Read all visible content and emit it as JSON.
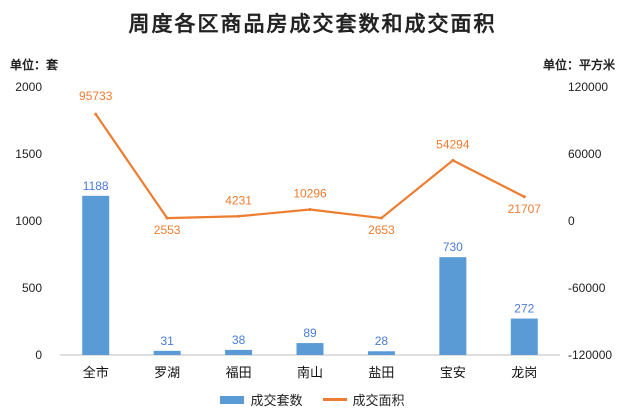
{
  "colors": {
    "bar": "#5b9bd5",
    "line": "#ed7d31"
  },
  "chart_data": {
    "type": "bar",
    "title": "周度各区商品房成交套数和成交面积",
    "unit_left": "单位：套",
    "unit_right": "单位：平方米",
    "categories": [
      "全市",
      "罗湖",
      "福田",
      "南山",
      "盐田",
      "宝安",
      "龙岗"
    ],
    "series": [
      {
        "name": "成交套数",
        "type": "bar",
        "axis": "left",
        "values": [
          1188,
          31,
          38,
          89,
          28,
          730,
          272
        ]
      },
      {
        "name": "成交面积",
        "type": "line",
        "axis": "right",
        "values": [
          95733,
          2553,
          4231,
          10296,
          2653,
          54294,
          21707
        ]
      }
    ],
    "ylim_left": [
      0,
      2000
    ],
    "yticks_left": [
      "0",
      "500",
      "1000",
      "1500",
      "2000"
    ],
    "ylim_right": [
      -120000,
      120000
    ],
    "yticks_right": [
      "-120000",
      "-60000",
      "0",
      "60000",
      "120000"
    ],
    "grid": false,
    "legend_position": "bottom"
  }
}
